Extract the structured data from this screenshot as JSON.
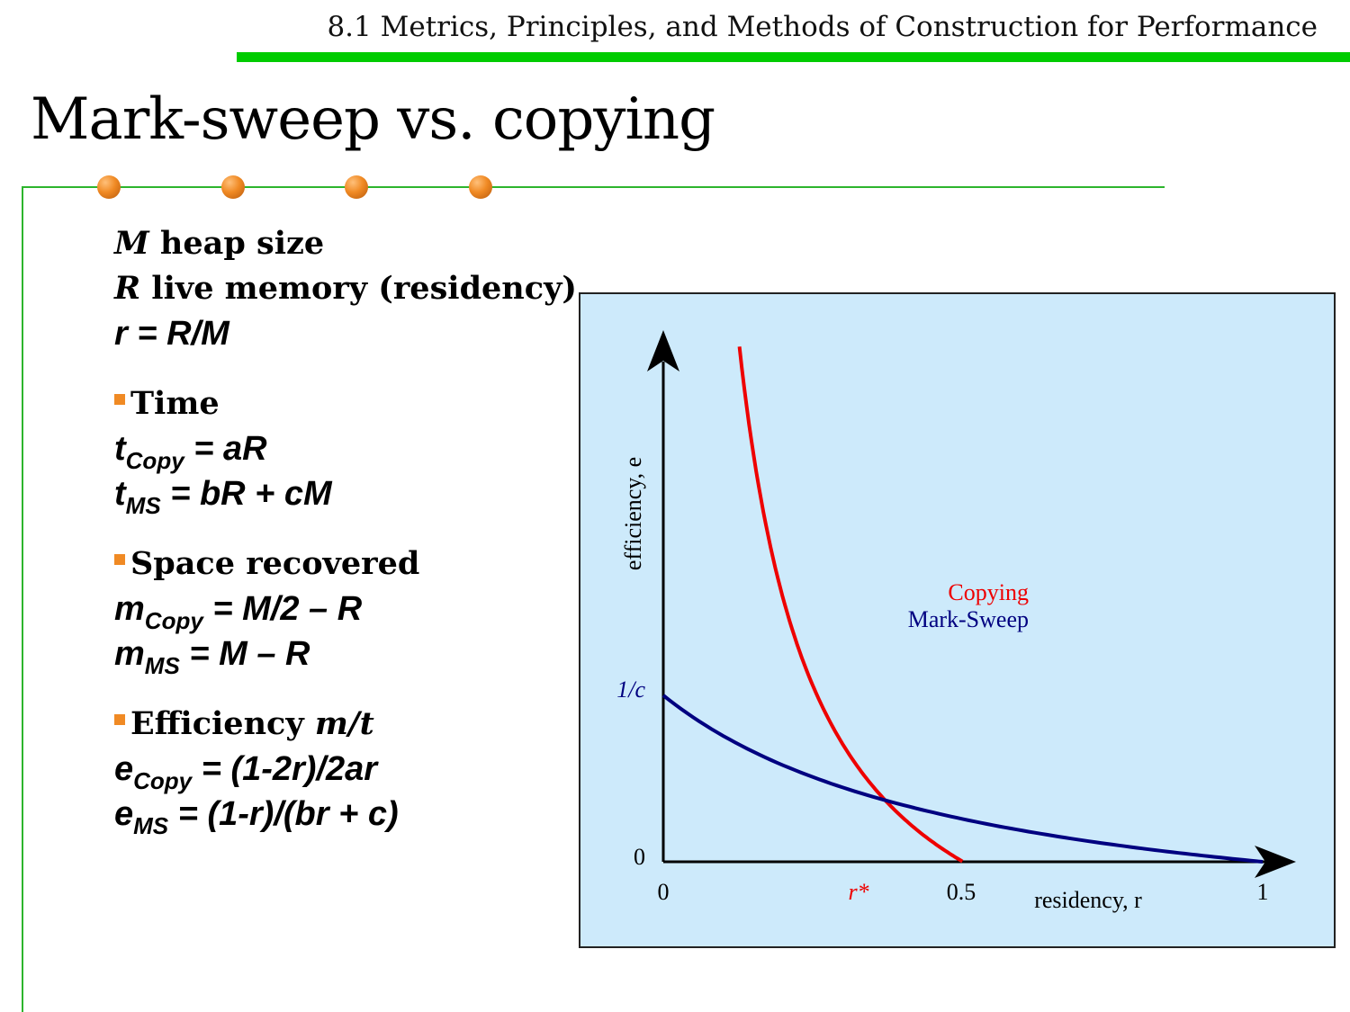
{
  "header": {
    "text": "8.1 Metrics, Principles, and Methods of Construction for Performance",
    "bar_color": "#00cc00"
  },
  "slide": {
    "title": "Mark-sweep vs. copying"
  },
  "definitions": {
    "M_sym": "M",
    "M_text": " heap size",
    "R_sym": "R",
    "R_text": " live memory (residency)",
    "r_eq": "r = R/M"
  },
  "time": {
    "label": "Time",
    "copy_lhs": "t",
    "copy_sub": "Copy",
    "copy_rhs": " = aR",
    "ms_lhs": "t",
    "ms_sub": "MS",
    "ms_rhs": " = bR + cM"
  },
  "space": {
    "label": "Space recovered",
    "copy_lhs": "m",
    "copy_sub": "Copy",
    "copy_rhs": " = M/2 – R",
    "ms_lhs": "m",
    "ms_sub": "MS",
    "ms_rhs": " = M – R"
  },
  "efficiency": {
    "label": "Efficiency ",
    "label_sym": "m/t",
    "copy_lhs": "e",
    "copy_sub": "Copy",
    "copy_rhs": " = (1-2r)/2ar",
    "ms_lhs": "e",
    "ms_sub": "MS",
    "ms_rhs": " = (1-r)/(br + c)"
  },
  "diagram": {
    "y_axis_label": "efficiency, e",
    "x_axis_label": "residency, r",
    "tick_x_0": "0",
    "tick_x_half": "0.5",
    "tick_x_1": "1",
    "tick_y_0": "0",
    "tick_y_inv_c": "1/c",
    "crossover_label": "r*",
    "legend_copying": "Copying",
    "legend_marksweep": "Mark-Sweep",
    "colors": {
      "copying": "#ee0000",
      "marksweep": "#000080",
      "background": "#cdeafb"
    }
  }
}
